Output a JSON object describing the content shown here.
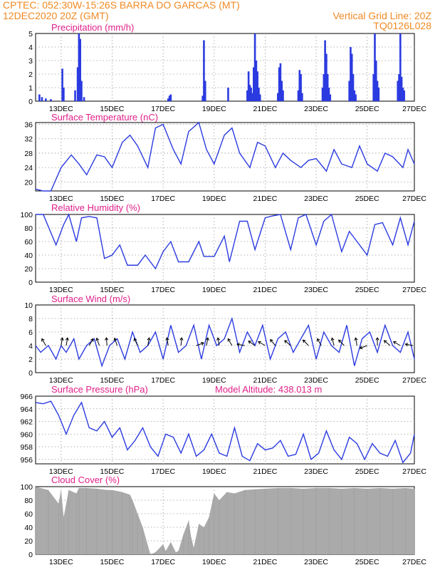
{
  "header": {
    "line1_left": "CPTEC:   052:30W-15:26S   BARRA DO GARCAS (MT)",
    "line2_left": "12DEC2020 20Z (GMT)",
    "line2_right": "Vertical Grid Line: 20Z",
    "line3_right": "TQ0126L028"
  },
  "colors": {
    "series": "#2b3be0",
    "title": "#e0208a",
    "header": "#f08a24",
    "cloud": "#aaaaaa"
  },
  "chart_data": [
    {
      "id": "precip",
      "type": "bar",
      "title": "Precipitation (mm/h)",
      "ylim": [
        0,
        5
      ],
      "yticks": [
        0,
        1,
        2,
        3,
        4,
        5
      ],
      "xticks": [
        "13DEC",
        "15DEC",
        "17DEC",
        "19DEC",
        "21DEC",
        "23DEC",
        "25DEC",
        "27DEC"
      ],
      "grid": true,
      "events": [
        [
          0.15,
          0.5
        ],
        [
          0.25,
          0.3
        ],
        [
          0.4,
          0.2
        ],
        [
          0.6,
          0.15
        ],
        [
          1.05,
          2.4
        ],
        [
          1.1,
          1.0
        ],
        [
          1.55,
          0.8
        ],
        [
          1.65,
          2.5
        ],
        [
          1.7,
          5.0
        ],
        [
          1.75,
          4.6
        ],
        [
          1.8,
          1.5
        ],
        [
          1.9,
          0.3
        ],
        [
          5.2,
          0.2
        ],
        [
          5.25,
          0.4
        ],
        [
          5.3,
          0.5
        ],
        [
          6.55,
          0.4
        ],
        [
          6.6,
          4.5
        ],
        [
          6.65,
          1.5
        ],
        [
          7.55,
          1.0
        ],
        [
          8.3,
          0.8
        ],
        [
          8.35,
          2.2
        ],
        [
          8.4,
          1.2
        ],
        [
          8.45,
          1.0
        ],
        [
          8.5,
          0.6
        ],
        [
          8.55,
          2.5
        ],
        [
          8.6,
          5.0
        ],
        [
          8.65,
          3.0
        ],
        [
          8.7,
          2.2
        ],
        [
          8.75,
          1.0
        ],
        [
          8.8,
          0.5
        ],
        [
          9.5,
          0.6
        ],
        [
          9.55,
          2.5
        ],
        [
          9.6,
          2.8
        ],
        [
          9.65,
          1.5
        ],
        [
          9.7,
          0.8
        ],
        [
          10.3,
          0.8
        ],
        [
          10.35,
          2.3
        ],
        [
          10.4,
          2.0
        ],
        [
          10.45,
          0.6
        ],
        [
          11.25,
          1.0
        ],
        [
          11.3,
          2.0
        ],
        [
          11.35,
          4.5
        ],
        [
          11.4,
          3.5
        ],
        [
          11.45,
          2.0
        ],
        [
          11.5,
          1.0
        ],
        [
          11.55,
          0.5
        ],
        [
          12.3,
          1.5
        ],
        [
          12.35,
          4.0
        ],
        [
          12.4,
          3.5
        ],
        [
          12.45,
          2.0
        ],
        [
          12.5,
          0.8
        ],
        [
          12.55,
          0.5
        ],
        [
          13.25,
          2.0
        ],
        [
          13.3,
          5.0
        ],
        [
          13.35,
          3.0
        ],
        [
          13.4,
          1.5
        ],
        [
          13.45,
          1.0
        ],
        [
          14.2,
          1.5
        ],
        [
          14.25,
          2.0
        ],
        [
          14.3,
          5.0
        ],
        [
          14.35,
          1.8
        ],
        [
          14.4,
          1.0
        ],
        [
          14.45,
          0.8
        ]
      ]
    },
    {
      "id": "temp",
      "type": "line",
      "title": "Surface Temperature (nC)",
      "ylim": [
        17.5,
        36.5
      ],
      "yticks": [
        20,
        24,
        28,
        32,
        36
      ],
      "xticks": [
        "13DEC",
        "15DEC",
        "17DEC",
        "19DEC",
        "21DEC",
        "23DEC",
        "25DEC",
        "27DEC"
      ],
      "grid": true,
      "x": [
        0.0,
        0.3,
        0.6,
        1.0,
        1.4,
        1.7,
        2.0,
        2.4,
        2.7,
        3.0,
        3.4,
        3.7,
        4.0,
        4.4,
        4.7,
        5.0,
        5.4,
        5.7,
        6.0,
        6.4,
        6.7,
        7.0,
        7.4,
        7.7,
        8.0,
        8.4,
        8.7,
        9.0,
        9.4,
        9.7,
        10.0,
        10.4,
        10.7,
        11.0,
        11.4,
        11.7,
        12.0,
        12.4,
        12.7,
        13.0,
        13.4,
        13.7,
        14.0,
        14.4,
        14.6,
        14.85
      ],
      "y": [
        18,
        17.5,
        17.5,
        24,
        27.5,
        25,
        22,
        27.5,
        27,
        24,
        31,
        33,
        30,
        24,
        35,
        36,
        29,
        25,
        34,
        36.5,
        29,
        25,
        33,
        35,
        28,
        24,
        31,
        30,
        24,
        28,
        26,
        24,
        26,
        26.5,
        23,
        29,
        25,
        24,
        30,
        25,
        23,
        28,
        27,
        24,
        29,
        25
      ]
    },
    {
      "id": "rh",
      "type": "line",
      "title": "Relative Humidity (%)",
      "ylim": [
        0,
        100
      ],
      "yticks": [
        0,
        20,
        40,
        60,
        80,
        100
      ],
      "xticks": [
        "13DEC",
        "15DEC",
        "17DEC",
        "19DEC",
        "21DEC",
        "23DEC",
        "25DEC",
        "27DEC"
      ],
      "grid": true,
      "x": [
        0.0,
        0.3,
        0.8,
        1.1,
        1.3,
        1.6,
        1.8,
        2.1,
        2.4,
        2.7,
        3.0,
        3.3,
        3.6,
        4.0,
        4.3,
        4.7,
        5.0,
        5.3,
        5.6,
        6.0,
        6.4,
        6.6,
        7.0,
        7.4,
        7.6,
        8.0,
        8.3,
        8.6,
        9.0,
        9.3,
        9.6,
        10.0,
        10.3,
        10.6,
        11.0,
        11.3,
        11.6,
        12.0,
        12.3,
        12.6,
        13.0,
        13.3,
        13.6,
        14.0,
        14.3,
        14.6,
        14.85
      ],
      "y": [
        100,
        100,
        55,
        85,
        100,
        60,
        95,
        97,
        95,
        35,
        40,
        55,
        25,
        25,
        40,
        20,
        45,
        60,
        30,
        30,
        60,
        38,
        38,
        68,
        30,
        90,
        90,
        48,
        95,
        98,
        100,
        48,
        95,
        100,
        55,
        90,
        100,
        45,
        75,
        60,
        40,
        85,
        88,
        55,
        95,
        55,
        90
      ]
    },
    {
      "id": "wind",
      "type": "line",
      "title": "Surface Wind (m/s)",
      "ylim": [
        0,
        10
      ],
      "yticks": [
        0,
        2,
        4,
        6,
        8,
        10
      ],
      "xticks": [
        "13DEC",
        "15DEC",
        "17DEC",
        "19DEC",
        "21DEC",
        "23DEC",
        "25DEC",
        "27DEC"
      ],
      "grid": true,
      "x": [
        0.0,
        0.2,
        0.5,
        0.8,
        1.0,
        1.2,
        1.5,
        1.7,
        2.0,
        2.3,
        2.6,
        2.9,
        3.2,
        3.5,
        3.8,
        4.1,
        4.4,
        4.7,
        5.0,
        5.3,
        5.6,
        5.9,
        6.2,
        6.5,
        6.8,
        7.1,
        7.4,
        7.7,
        8.0,
        8.3,
        8.6,
        8.9,
        9.2,
        9.5,
        9.8,
        10.1,
        10.4,
        10.7,
        11.0,
        11.3,
        11.6,
        11.9,
        12.2,
        12.5,
        12.8,
        13.1,
        13.4,
        13.7,
        14.0,
        14.3,
        14.6,
        14.85
      ],
      "y": [
        4,
        3,
        4,
        2,
        4,
        3,
        5,
        2,
        4,
        5,
        1,
        4,
        5,
        2,
        6,
        3,
        4,
        6,
        2,
        7,
        3,
        4,
        7,
        2,
        7,
        4,
        5,
        8,
        3,
        6,
        4,
        7,
        2,
        5,
        6,
        3,
        5,
        7,
        2,
        6,
        4,
        3,
        7,
        1,
        5,
        6,
        3,
        7,
        4,
        3,
        6,
        2
      ],
      "vectors": [
        [
          0.4,
          120
        ],
        [
          1.0,
          80
        ],
        [
          1.2,
          80
        ],
        [
          2.1,
          60
        ],
        [
          2.5,
          110
        ],
        [
          2.8,
          95
        ],
        [
          3.2,
          110
        ],
        [
          4.0,
          115
        ],
        [
          4.4,
          80
        ],
        [
          5.2,
          100
        ],
        [
          5.7,
          85
        ],
        [
          6.3,
          20
        ],
        [
          6.7,
          80
        ],
        [
          7.2,
          100
        ],
        [
          7.7,
          120
        ],
        [
          8.2,
          170
        ],
        [
          8.6,
          145
        ],
        [
          9.0,
          150
        ],
        [
          9.4,
          130
        ],
        [
          10.0,
          140
        ],
        [
          10.7,
          135
        ],
        [
          11.2,
          120
        ],
        [
          11.7,
          105
        ],
        [
          12.1,
          135
        ],
        [
          12.6,
          100
        ],
        [
          13.0,
          200
        ],
        [
          13.4,
          90
        ],
        [
          13.9,
          140
        ],
        [
          14.3,
          150
        ],
        [
          14.8,
          170
        ]
      ]
    },
    {
      "id": "pressure",
      "type": "line",
      "title": "Surface Pressure (hPa)",
      "annotation": "Model Altitude: 438.013 m",
      "ylim": [
        955.3,
        966
      ],
      "yticks": [
        956,
        958,
        960,
        962,
        964,
        966
      ],
      "xticks": [
        "13DEC",
        "15DEC",
        "17DEC",
        "19DEC",
        "21DEC",
        "23DEC",
        "25DEC",
        "27DEC"
      ],
      "grid": true,
      "x": [
        0.0,
        0.3,
        0.6,
        0.9,
        1.2,
        1.5,
        1.8,
        2.1,
        2.4,
        2.7,
        3.0,
        3.3,
        3.6,
        3.9,
        4.2,
        4.5,
        4.8,
        5.1,
        5.4,
        5.7,
        6.0,
        6.3,
        6.6,
        6.9,
        7.2,
        7.5,
        7.8,
        8.1,
        8.4,
        8.7,
        9.0,
        9.3,
        9.6,
        9.9,
        10.2,
        10.5,
        10.8,
        11.1,
        11.4,
        11.7,
        12.0,
        12.3,
        12.6,
        12.9,
        13.2,
        13.5,
        13.8,
        14.1,
        14.4,
        14.7,
        14.85
      ],
      "y": [
        965,
        964.8,
        965.2,
        963,
        960,
        963,
        965,
        961,
        960.5,
        962,
        959.5,
        961,
        957.5,
        959,
        961,
        958,
        956.5,
        960,
        959.5,
        957,
        960,
        956.5,
        957.5,
        960,
        957,
        956.5,
        961,
        956.5,
        955.8,
        958.5,
        957.5,
        957.8,
        959,
        956.5,
        956.8,
        960,
        956,
        957,
        960.5,
        957.5,
        956,
        959.5,
        958.5,
        956,
        958.5,
        957,
        956.5,
        959,
        955.5,
        957,
        960
      ]
    },
    {
      "id": "cloud",
      "type": "bar",
      "title": "Cloud Cover (%)",
      "ylim": [
        0,
        100
      ],
      "yticks": [
        0,
        20,
        40,
        60,
        80,
        100
      ],
      "xticks": [
        "13DEC",
        "15DEC",
        "17DEC",
        "19DEC",
        "21DEC",
        "23DEC",
        "25DEC",
        "27DEC"
      ],
      "grid": true,
      "x": [
        0.0,
        0.5,
        0.9,
        1.0,
        1.1,
        1.3,
        1.6,
        1.7,
        2.0,
        2.4,
        2.8,
        3.0,
        3.4,
        3.7,
        3.8,
        4.0,
        4.2,
        4.5,
        4.7,
        5.0,
        5.1,
        5.3,
        5.5,
        5.6,
        5.8,
        6.0,
        6.1,
        6.2,
        6.4,
        6.6,
        6.8,
        7.0,
        7.2,
        7.5,
        7.8,
        8.2,
        8.6,
        9.0,
        9.5,
        10.0,
        10.5,
        11.0,
        11.5,
        12.0,
        12.5,
        13.0,
        13.5,
        14.0,
        14.5,
        14.85
      ],
      "y": [
        100,
        95,
        75,
        95,
        55,
        95,
        90,
        98,
        98,
        97,
        95,
        95,
        92,
        88,
        80,
        60,
        40,
        0,
        3,
        15,
        5,
        18,
        3,
        5,
        30,
        50,
        25,
        10,
        45,
        40,
        55,
        90,
        80,
        92,
        90,
        95,
        96,
        97,
        98,
        98,
        97,
        98,
        98,
        97,
        98,
        97,
        98,
        97,
        98,
        97
      ]
    }
  ]
}
